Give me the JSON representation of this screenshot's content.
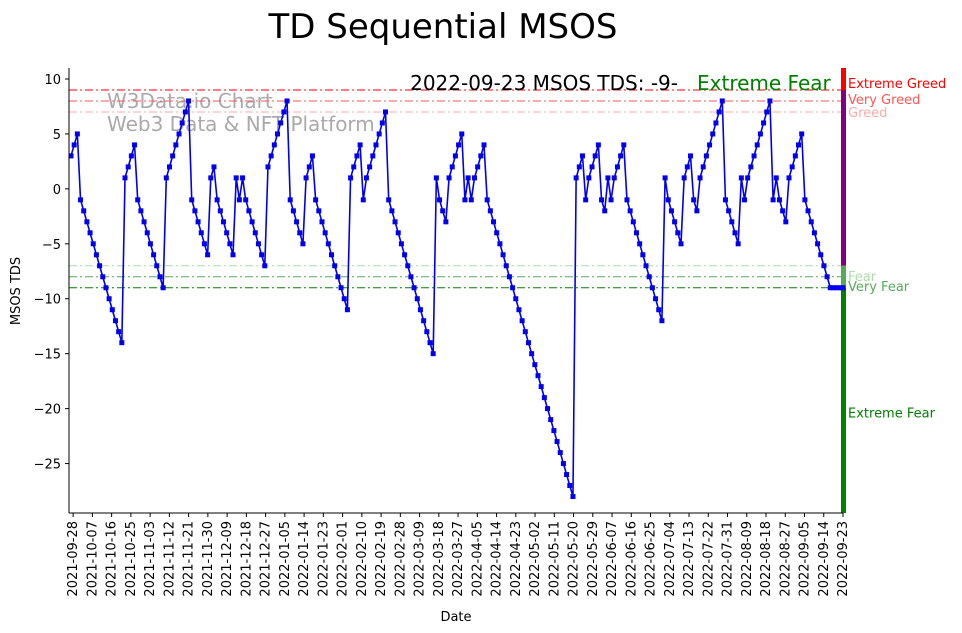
{
  "chart_data": {
    "type": "line",
    "title": "TD Sequential MSOS",
    "xlabel": "Date",
    "ylabel": "MSOS TDS",
    "ylim": [
      -29.5,
      11
    ],
    "y_ticks": [
      10,
      5,
      0,
      -5,
      -10,
      -15,
      -20,
      -25
    ],
    "y_tick_labels": [
      "10",
      "5",
      "0",
      "−5",
      "−10",
      "−15",
      "−20",
      "−25"
    ],
    "x_start": "2021-09-27",
    "x_end": "2022-09-23",
    "x_tick_labels": [
      "2021-09-28",
      "2021-10-07",
      "2021-10-16",
      "2021-10-25",
      "2021-11-03",
      "2021-11-12",
      "2021-11-21",
      "2021-11-30",
      "2021-12-09",
      "2021-12-18",
      "2021-12-27",
      "2022-01-05",
      "2022-01-14",
      "2022-01-23",
      "2022-02-01",
      "2022-02-10",
      "2022-02-19",
      "2022-02-28",
      "2022-03-09",
      "2022-03-18",
      "2022-03-27",
      "2022-04-05",
      "2022-04-14",
      "2022-04-23",
      "2022-05-02",
      "2022-05-11",
      "2022-05-20",
      "2022-05-29",
      "2022-06-07",
      "2022-06-16",
      "2022-06-25",
      "2022-07-04",
      "2022-07-13",
      "2022-07-22",
      "2022-07-31",
      "2022-08-09",
      "2022-08-18",
      "2022-08-27",
      "2022-09-05",
      "2022-09-14",
      "2022-09-23"
    ],
    "series": [
      {
        "name": "MSOS TDS",
        "color": "#0000ee",
        "values": [
          3,
          4,
          5,
          -1,
          -2,
          -3,
          -4,
          -5,
          -6,
          -7,
          -8,
          -9,
          -10,
          -11,
          -12,
          -13,
          -14,
          1,
          2,
          3,
          4,
          -1,
          -2,
          -3,
          -4,
          -5,
          -6,
          -7,
          -8,
          -9,
          1,
          2,
          3,
          4,
          5,
          6,
          7,
          8,
          -1,
          -2,
          -3,
          -4,
          -5,
          -6,
          1,
          2,
          -1,
          -2,
          -3,
          -4,
          -5,
          -6,
          1,
          -1,
          1,
          -1,
          -2,
          -3,
          -4,
          -5,
          -6,
          -7,
          2,
          3,
          4,
          5,
          6,
          7,
          8,
          -1,
          -2,
          -3,
          -4,
          -5,
          1,
          2,
          3,
          -1,
          -2,
          -3,
          -4,
          -5,
          -6,
          -7,
          -8,
          -9,
          -10,
          -11,
          1,
          2,
          3,
          4,
          -1,
          1,
          2,
          3,
          4,
          5,
          6,
          7,
          -1,
          -2,
          -3,
          -4,
          -5,
          -6,
          -7,
          -8,
          -9,
          -10,
          -11,
          -12,
          -13,
          -14,
          -15,
          1,
          -1,
          -2,
          -3,
          1,
          2,
          3,
          4,
          5,
          -1,
          1,
          -1,
          1,
          2,
          3,
          4,
          -1,
          -2,
          -3,
          -4,
          -5,
          -6,
          -7,
          -8,
          -9,
          -10,
          -11,
          -12,
          -13,
          -14,
          -15,
          -16,
          -17,
          -18,
          -19,
          -20,
          -21,
          -22,
          -23,
          -24,
          -25,
          -26,
          -27,
          -28,
          1,
          2,
          3,
          -1,
          1,
          2,
          3,
          4,
          -1,
          -2,
          1,
          -1,
          1,
          2,
          3,
          4,
          -1,
          -2,
          -3,
          -4,
          -5,
          -6,
          -7,
          -8,
          -9,
          -10,
          -11,
          -12,
          1,
          -1,
          -2,
          -3,
          -4,
          -5,
          1,
          2,
          3,
          -1,
          -2,
          1,
          2,
          3,
          4,
          5,
          6,
          7,
          8,
          -1,
          -2,
          -3,
          -4,
          -5,
          1,
          -1,
          1,
          2,
          3,
          4,
          5,
          6,
          7,
          8,
          -1,
          1,
          -1,
          -2,
          -3,
          1,
          2,
          3,
          4,
          5,
          -1,
          -2,
          -3,
          -4,
          -5,
          -6,
          -7,
          -8,
          -9,
          -9,
          -9,
          -9,
          -9
        ]
      }
    ],
    "levels": [
      {
        "name": "Extreme Greed",
        "value": 9,
        "color": "#ff0000"
      },
      {
        "name": "Very Greed",
        "value": 8,
        "color": "#ff5555"
      },
      {
        "name": "Greed",
        "value": 7,
        "color": "#ffaaaa"
      },
      {
        "name": "Fear",
        "value": -7,
        "color": "#aaddaa"
      },
      {
        "name": "Very Fear",
        "value": -8,
        "color": "#55aa55"
      },
      {
        "name": "Extreme Fear",
        "value": -9,
        "color": "#008000"
      }
    ],
    "zone_bar": [
      {
        "from": 11,
        "to": 9,
        "color": "#ff0000"
      },
      {
        "from": 9,
        "to": -7,
        "color": "#800080"
      },
      {
        "from": -7,
        "to": -9,
        "color": "#55aa55"
      },
      {
        "from": -9,
        "to": -29.5,
        "color": "#008000"
      }
    ],
    "annotation": {
      "text": "2022-09-23 MSOS TDS: -9-",
      "status": "Extreme Fear",
      "status_color": "#008000"
    },
    "watermark": [
      "W3Data.io Chart",
      "Web3 Data & NFT Platform"
    ]
  }
}
